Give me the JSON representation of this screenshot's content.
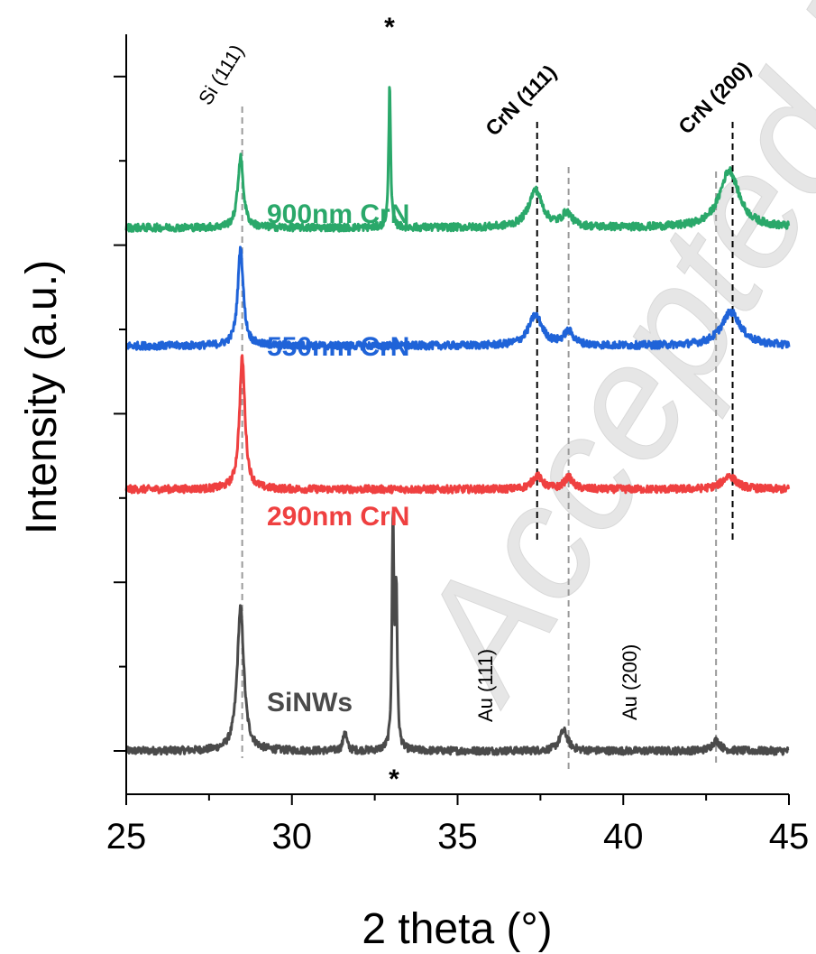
{
  "chart_data": {
    "type": "line",
    "xlabel": "2 theta (°)",
    "ylabel": "Intensity (a.u.)",
    "xlim": [
      25,
      45
    ],
    "xticks": [
      "25",
      "30",
      "35",
      "40",
      "45"
    ],
    "yticks_labeled": false,
    "series": [
      {
        "name": "SiNWs",
        "color": "#4a4a4a",
        "baseline": 0.0,
        "peaks": [
          {
            "x": 28.45,
            "height": 0.85,
            "width": 0.12
          },
          {
            "x": 31.6,
            "height": 0.12,
            "width": 0.06
          },
          {
            "x": 33.05,
            "height": 1.35,
            "width": 0.035
          },
          {
            "x": 33.15,
            "height": 0.9,
            "width": 0.035
          },
          {
            "x": 38.2,
            "height": 0.12,
            "width": 0.15
          },
          {
            "x": 42.8,
            "height": 0.06,
            "width": 0.15
          }
        ]
      },
      {
        "name": "290nm CrN",
        "color": "#ef4040",
        "baseline": 1.55,
        "peaks": [
          {
            "x": 28.5,
            "height": 0.78,
            "width": 0.1
          },
          {
            "x": 37.4,
            "height": 0.08,
            "width": 0.18
          },
          {
            "x": 38.35,
            "height": 0.07,
            "width": 0.15
          },
          {
            "x": 43.2,
            "height": 0.08,
            "width": 0.25
          }
        ]
      },
      {
        "name": "550nm CrN",
        "color": "#1f63d8",
        "baseline": 2.4,
        "peaks": [
          {
            "x": 28.45,
            "height": 0.58,
            "width": 0.1
          },
          {
            "x": 37.35,
            "height": 0.18,
            "width": 0.25
          },
          {
            "x": 38.35,
            "height": 0.08,
            "width": 0.18
          },
          {
            "x": 43.25,
            "height": 0.2,
            "width": 0.35
          }
        ]
      },
      {
        "name": "900nm CrN",
        "color": "#2aa86a",
        "baseline": 3.1,
        "peaks": [
          {
            "x": 28.45,
            "height": 0.42,
            "width": 0.1
          },
          {
            "x": 32.95,
            "height": 0.85,
            "width": 0.035
          },
          {
            "x": 37.35,
            "height": 0.22,
            "width": 0.25
          },
          {
            "x": 38.3,
            "height": 0.08,
            "width": 0.18
          },
          {
            "x": 43.2,
            "height": 0.34,
            "width": 0.35
          }
        ]
      }
    ],
    "reference_lines": [
      {
        "x": 28.5,
        "label": "Si (111)",
        "style": "gray-dashed"
      },
      {
        "x": 37.4,
        "label": "CrN (111)",
        "style": "black-dashed"
      },
      {
        "x": 43.3,
        "label": "CrN (200)",
        "style": "black-dashed"
      },
      {
        "x": 38.35,
        "label": "Au (111)",
        "style": "gray-dashed"
      },
      {
        "x": 42.8,
        "label": "Au (200)",
        "style": "gray-dashed"
      }
    ],
    "annotations": [
      "*",
      "*"
    ]
  },
  "watermark": "Accepted Manuscript"
}
